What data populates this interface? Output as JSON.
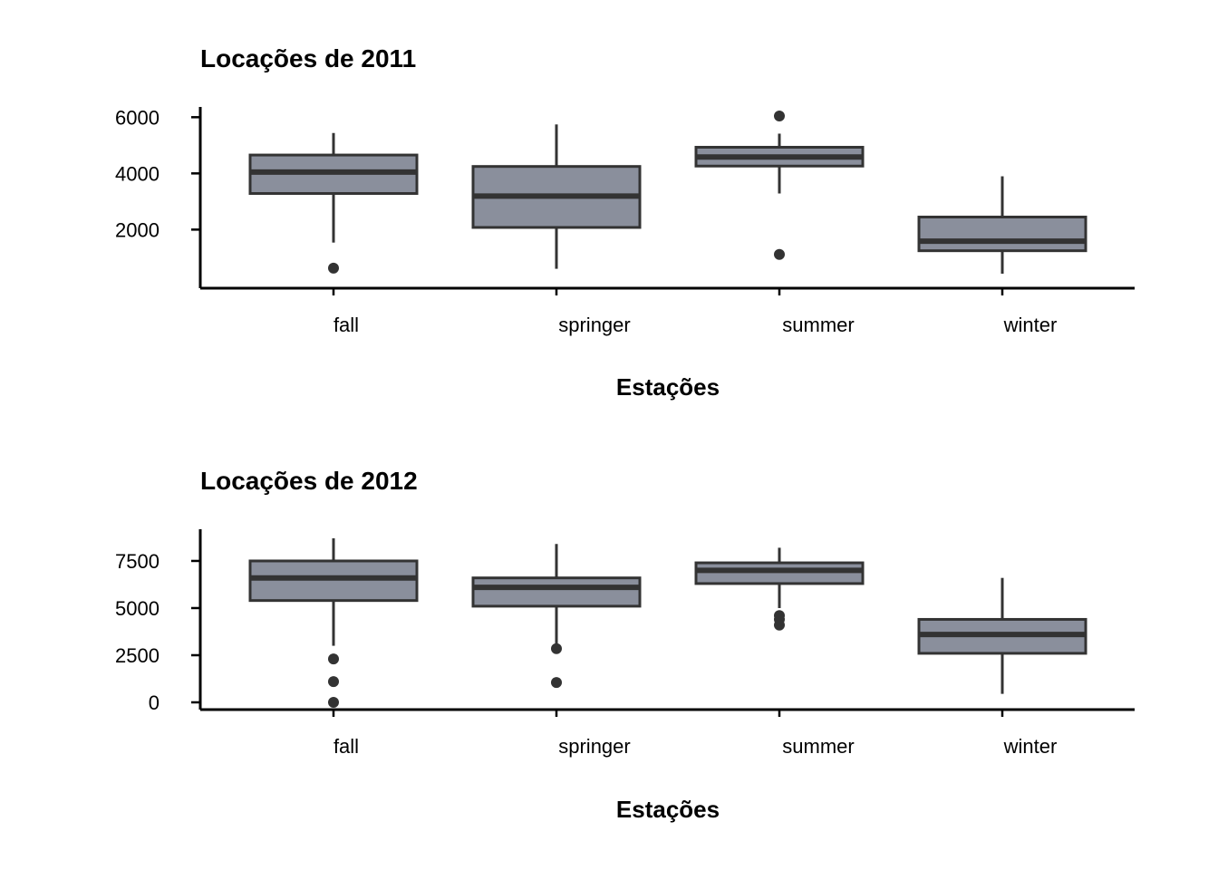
{
  "colors": {
    "box_fill": "#8a8f9c",
    "stroke": "#333333"
  },
  "chart_data": [
    {
      "type": "boxplot",
      "title": "Locações de 2011",
      "xlabel": "Estações",
      "ylabel": "",
      "categories": [
        "fall",
        "springer",
        "summer",
        "winter"
      ],
      "yticks": [
        2000,
        4000,
        6000
      ],
      "ylim": [
        431,
        6043
      ],
      "boxes": [
        {
          "category": "fall",
          "whisker_low": 1538,
          "q1": 3285,
          "median": 4047,
          "q3": 4654,
          "whisker_high": 5438,
          "outliers": [
            627
          ]
        },
        {
          "category": "springer",
          "whisker_low": 605,
          "q1": 2077,
          "median": 3192,
          "q3": 4247,
          "whisker_high": 5743,
          "outliers": []
        },
        {
          "category": "summer",
          "whisker_low": 3285,
          "q1": 4261,
          "median": 4582,
          "q3": 4931,
          "whisker_high": 5415,
          "outliers": [
            6043,
            1115
          ]
        },
        {
          "category": "winter",
          "whisker_low": 431,
          "q1": 1248,
          "median": 1589,
          "q3": 2447,
          "whisker_high": 3897,
          "outliers": []
        }
      ]
    },
    {
      "type": "boxplot",
      "title": "Locações de 2012",
      "xlabel": "Estações",
      "ylabel": "",
      "categories": [
        "fall",
        "springer",
        "summer",
        "winter"
      ],
      "yticks": [
        0,
        2500,
        5000,
        7500
      ],
      "ylim": [
        0,
        8700
      ],
      "boxes": [
        {
          "category": "fall",
          "whisker_low": 3000,
          "q1": 5400,
          "median": 6600,
          "q3": 7500,
          "whisker_high": 8700,
          "outliers": [
            2300,
            1100,
            0
          ]
        },
        {
          "category": "springer",
          "whisker_low": 3000,
          "q1": 5100,
          "median": 6100,
          "q3": 6600,
          "whisker_high": 8400,
          "outliers": [
            2850,
            1050
          ]
        },
        {
          "category": "summer",
          "whisker_low": 5000,
          "q1": 6300,
          "median": 7000,
          "q3": 7400,
          "whisker_high": 8200,
          "outliers": [
            4600,
            4400,
            4100
          ]
        },
        {
          "category": "winter",
          "whisker_low": 450,
          "q1": 2600,
          "median": 3600,
          "q3": 4400,
          "whisker_high": 6600,
          "outliers": []
        }
      ]
    }
  ]
}
